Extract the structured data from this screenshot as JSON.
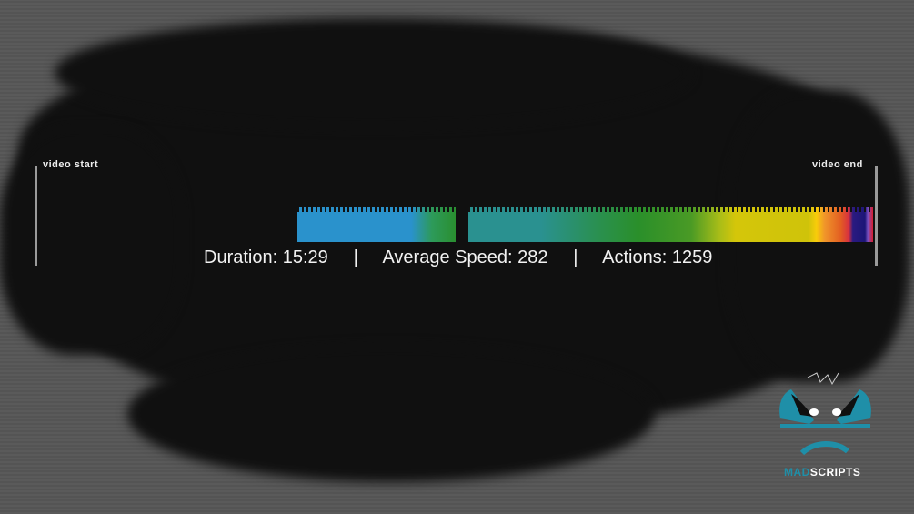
{
  "timeline": {
    "start_label": "video start",
    "end_label": "video end"
  },
  "stats": {
    "duration": "Duration: 15:29",
    "separator": "|",
    "average_speed": "Average Speed: 282",
    "actions": "Actions: 1259"
  },
  "logo": {
    "text_mad": "MAD",
    "text_scripts": "SCRIPTS",
    "accent_color": "#1f8fa8"
  }
}
